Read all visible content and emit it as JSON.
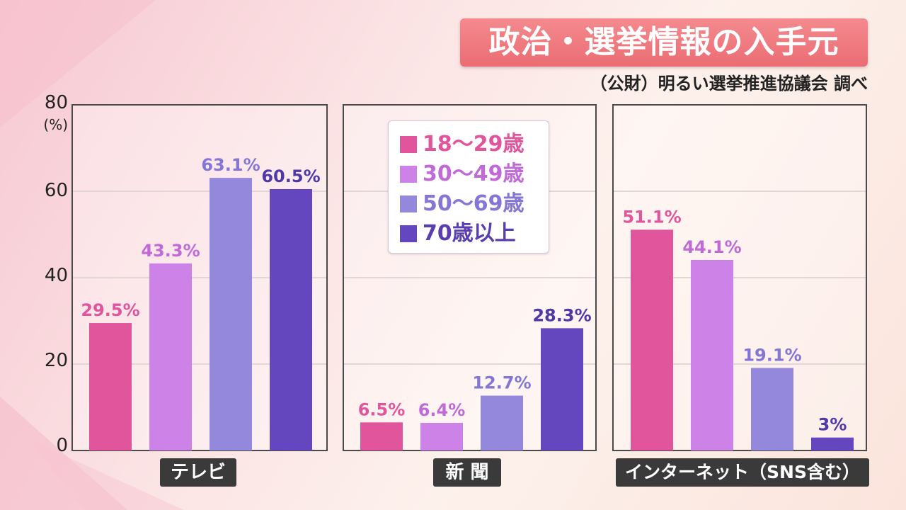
{
  "title": "政治・選挙情報の入手元",
  "source": "（公財）明るい選挙推進協議会 調べ",
  "colors": {
    "age_18_29": "#e0559c",
    "age_30_49": "#cc82e6",
    "age_50_69": "#9488dd",
    "age_70_plus": "#6446be"
  },
  "chart_data": {
    "type": "bar",
    "title": "政治・選挙情報の入手元",
    "ylabel": "(%)",
    "ylim": [
      0,
      80
    ],
    "yticks": [
      "0",
      "20",
      "40",
      "60",
      "80"
    ],
    "grid": true,
    "legend_position": "top-center",
    "categories": [
      "テレビ",
      "新 聞",
      "インターネット（SNS含む）"
    ],
    "series": [
      {
        "name": "18〜29歳",
        "values": [
          29.5,
          6.5,
          51.1
        ],
        "labels": [
          "29.5%",
          "6.5%",
          "51.1%"
        ]
      },
      {
        "name": "30〜49歳",
        "values": [
          43.3,
          6.4,
          44.1
        ],
        "labels": [
          "43.3%",
          "6.4%",
          "44.1%"
        ]
      },
      {
        "name": "50〜69歳",
        "values": [
          63.1,
          12.7,
          19.1
        ],
        "labels": [
          "63.1%",
          "12.7%",
          "19.1%"
        ]
      },
      {
        "name": "70歳以上",
        "values": [
          60.5,
          28.3,
          3
        ],
        "labels": [
          "60.5%",
          "28.3%",
          "3%"
        ]
      }
    ]
  }
}
